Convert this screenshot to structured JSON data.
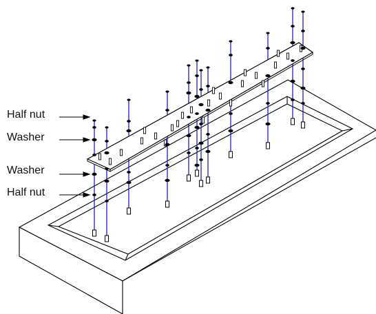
{
  "callouts": [
    {
      "label": "Half nut"
    },
    {
      "label": "Washer"
    },
    {
      "label": "Washer"
    },
    {
      "label": "Half nut"
    }
  ],
  "colors": {
    "outline": "#000000",
    "rod": "#1f1fbf",
    "background": "#ffffff"
  }
}
